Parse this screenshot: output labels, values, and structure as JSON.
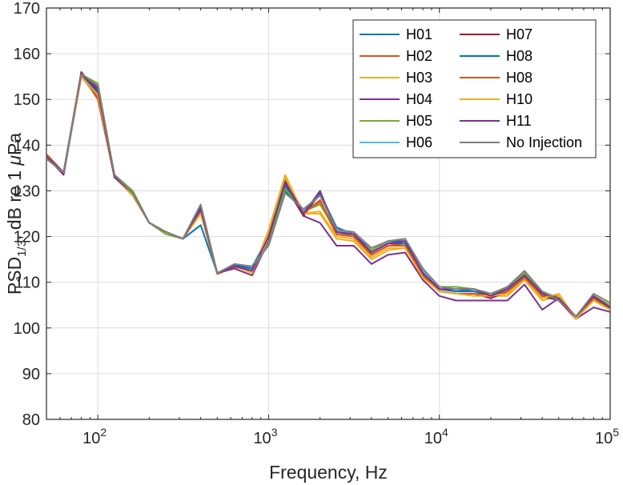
{
  "chart_data": {
    "type": "line",
    "xscale": "log",
    "xlim": [
      50,
      100000
    ],
    "ylim": [
      80,
      170
    ],
    "grid": true,
    "legend_position": "top-right",
    "xlabel": "Frequency, Hz",
    "ylabel": {
      "prefix": "PSD",
      "subscript": "1/3",
      "suffix": ", dB re 1 ",
      "mu": "μ",
      "unit": "Pa"
    },
    "xticks": [
      {
        "value": 100,
        "base": "10",
        "exp": "2"
      },
      {
        "value": 1000,
        "base": "10",
        "exp": "3"
      },
      {
        "value": 10000,
        "base": "10",
        "exp": "4"
      },
      {
        "value": 100000,
        "base": "10",
        "exp": "5"
      }
    ],
    "yticks": [
      "80",
      "90",
      "100",
      "110",
      "120",
      "130",
      "140",
      "150",
      "160",
      "170"
    ],
    "x": [
      50,
      63,
      80,
      100,
      125,
      160,
      200,
      250,
      315,
      400,
      500,
      630,
      800,
      1000,
      1250,
      1600,
      2000,
      2500,
      3150,
      4000,
      5000,
      6300,
      8000,
      10000,
      12500,
      16000,
      20000,
      25000,
      31500,
      40000,
      50000,
      63000,
      80000,
      100000
    ],
    "series": [
      {
        "name": "H01",
        "color": "#0072BD",
        "values": [
          137.5,
          133.5,
          155.0,
          152.0,
          133.5,
          130.0,
          123.0,
          121.0,
          119.5,
          122.5,
          112.0,
          113.8,
          113.0,
          120.0,
          130.0,
          125.5,
          129.5,
          122.0,
          120.5,
          117.0,
          119.0,
          119.0,
          113.0,
          108.5,
          108.0,
          108.5,
          107.0,
          109.0,
          112.0,
          107.5,
          106.0,
          102.5,
          106.5,
          104.5
        ]
      },
      {
        "name": "H02",
        "color": "#D95319",
        "values": [
          138.0,
          134.0,
          155.5,
          150.0,
          133.0,
          129.0,
          123.0,
          121.0,
          119.5,
          125.5,
          111.8,
          113.3,
          112.5,
          121.0,
          132.5,
          125.5,
          127.5,
          120.5,
          120.0,
          116.0,
          118.0,
          118.5,
          111.5,
          108.0,
          107.5,
          107.5,
          107.0,
          108.0,
          111.0,
          107.0,
          107.0,
          102.0,
          106.5,
          104.0
        ]
      },
      {
        "name": "H03",
        "color": "#EDB120",
        "values": [
          137.5,
          133.5,
          155.0,
          151.0,
          133.0,
          129.0,
          123.0,
          121.0,
          119.5,
          125.0,
          112.0,
          113.5,
          112.0,
          121.5,
          133.5,
          125.0,
          125.0,
          119.5,
          119.0,
          115.0,
          117.0,
          117.5,
          111.0,
          108.0,
          107.5,
          107.0,
          107.0,
          107.0,
          110.5,
          106.0,
          107.0,
          102.0,
          106.0,
          104.0
        ]
      },
      {
        "name": "H04",
        "color": "#7E2F8E",
        "values": [
          137.5,
          133.5,
          155.5,
          152.5,
          133.0,
          129.5,
          123.0,
          121.0,
          119.5,
          126.5,
          112.0,
          113.0,
          111.5,
          119.0,
          131.0,
          124.5,
          123.0,
          118.0,
          118.0,
          114.0,
          116.0,
          116.5,
          110.5,
          107.0,
          106.0,
          106.0,
          106.0,
          106.0,
          109.5,
          104.0,
          106.5,
          102.0,
          104.5,
          103.5
        ]
      },
      {
        "name": "H05",
        "color": "#77AC30",
        "values": [
          137.0,
          134.0,
          155.5,
          153.5,
          133.5,
          130.0,
          123.0,
          120.5,
          119.5,
          127.0,
          112.0,
          113.5,
          112.5,
          118.5,
          130.5,
          125.5,
          127.0,
          121.0,
          120.0,
          117.0,
          119.0,
          119.5,
          112.0,
          109.0,
          109.0,
          108.5,
          107.5,
          108.5,
          112.0,
          108.0,
          106.5,
          102.5,
          107.0,
          105.0
        ]
      },
      {
        "name": "H06",
        "color": "#4DBEEE",
        "values": [
          137.0,
          134.0,
          155.0,
          152.0,
          133.0,
          129.0,
          123.0,
          121.0,
          119.5,
          126.0,
          112.0,
          113.5,
          113.5,
          120.0,
          131.5,
          125.5,
          129.0,
          121.5,
          120.5,
          116.5,
          118.5,
          119.0,
          112.5,
          108.5,
          108.0,
          108.0,
          107.0,
          108.5,
          111.5,
          107.5,
          106.5,
          102.5,
          106.5,
          104.5
        ]
      },
      {
        "name": "H07",
        "color": "#A2142F",
        "values": [
          138.0,
          134.0,
          156.0,
          151.0,
          133.5,
          129.0,
          123.0,
          121.0,
          119.5,
          126.5,
          112.0,
          113.5,
          112.5,
          120.5,
          132.0,
          124.5,
          129.5,
          121.0,
          120.5,
          116.5,
          118.5,
          119.0,
          111.5,
          108.0,
          107.5,
          107.5,
          106.5,
          108.0,
          111.0,
          107.0,
          106.0,
          102.0,
          107.0,
          104.0
        ]
      },
      {
        "name": "H08",
        "color": "#0072BD",
        "values": [
          138.0,
          134.0,
          155.5,
          151.5,
          133.5,
          129.5,
          123.0,
          121.0,
          119.5,
          126.5,
          112.0,
          113.8,
          113.0,
          120.0,
          131.5,
          125.0,
          129.5,
          121.0,
          120.5,
          116.5,
          118.5,
          118.5,
          112.0,
          108.5,
          108.0,
          108.0,
          107.0,
          108.5,
          111.5,
          107.5,
          106.0,
          102.5,
          106.5,
          104.5
        ]
      },
      {
        "name": "H08",
        "color": "#D95319",
        "values": [
          138.0,
          134.0,
          155.0,
          150.5,
          133.0,
          129.0,
          123.0,
          121.0,
          119.5,
          125.5,
          112.0,
          113.5,
          112.5,
          120.5,
          132.0,
          125.0,
          128.0,
          120.5,
          120.0,
          116.0,
          118.0,
          118.0,
          111.5,
          108.0,
          107.5,
          107.5,
          107.0,
          108.0,
          111.0,
          107.0,
          106.5,
          102.0,
          106.5,
          104.0
        ]
      },
      {
        "name": "H10",
        "color": "#EDB120",
        "values": [
          137.5,
          134.0,
          155.0,
          151.0,
          133.0,
          129.0,
          123.0,
          121.0,
          119.5,
          125.0,
          112.0,
          113.5,
          112.0,
          121.0,
          133.0,
          125.0,
          125.5,
          120.0,
          119.5,
          115.5,
          117.5,
          117.5,
          111.0,
          108.0,
          107.5,
          107.0,
          107.0,
          107.5,
          110.5,
          106.5,
          107.5,
          102.0,
          106.0,
          104.0
        ]
      },
      {
        "name": "H11",
        "color": "#7E2F8E",
        "values": [
          137.5,
          134.0,
          155.5,
          152.0,
          133.0,
          129.5,
          123.0,
          121.0,
          119.5,
          126.0,
          112.0,
          113.5,
          112.5,
          120.0,
          132.0,
          125.0,
          130.0,
          121.0,
          120.5,
          116.5,
          118.5,
          119.0,
          112.0,
          108.5,
          108.5,
          108.5,
          107.0,
          108.5,
          111.5,
          107.5,
          106.5,
          102.5,
          107.0,
          104.5
        ]
      },
      {
        "name": "No Injection",
        "color": "#7F7F7F",
        "values": [
          137.0,
          134.0,
          155.5,
          153.0,
          133.5,
          129.5,
          123.0,
          121.0,
          119.5,
          127.0,
          112.0,
          114.0,
          113.5,
          118.0,
          129.5,
          126.0,
          129.0,
          121.5,
          121.0,
          117.5,
          119.0,
          119.5,
          113.0,
          109.0,
          108.5,
          108.5,
          107.5,
          109.0,
          112.5,
          108.0,
          106.0,
          102.5,
          107.5,
          105.5
        ]
      }
    ]
  }
}
